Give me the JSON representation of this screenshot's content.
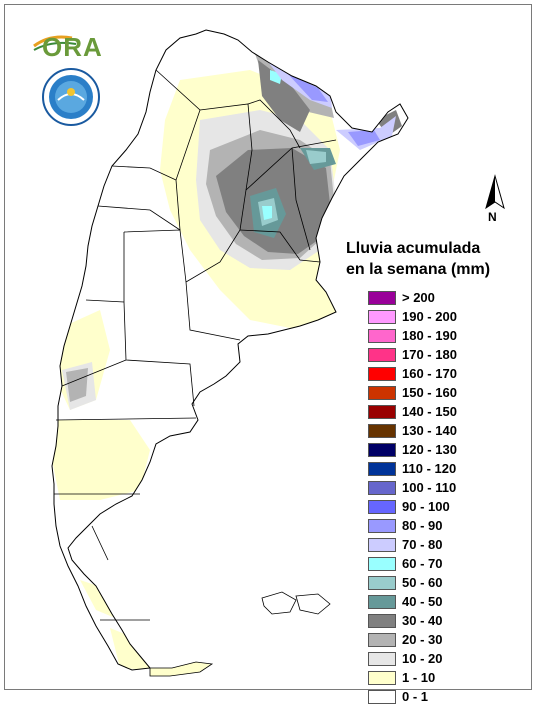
{
  "legend": {
    "title_line1": "Lluvia acumulada",
    "title_line2": "en la semana (mm)",
    "classes": [
      {
        "label": "> 200",
        "color": "#990099"
      },
      {
        "label": "190 - 200",
        "color": "#ff99ff"
      },
      {
        "label": "180 - 190",
        "color": "#ff66cc"
      },
      {
        "label": "170 - 180",
        "color": "#ff3388"
      },
      {
        "label": "160 - 170",
        "color": "#ff0000"
      },
      {
        "label": "150 - 160",
        "color": "#cc3300"
      },
      {
        "label": "140 - 150",
        "color": "#990000"
      },
      {
        "label": "130 - 140",
        "color": "#663300"
      },
      {
        "label": "120 - 130",
        "color": "#000066"
      },
      {
        "label": "110 - 120",
        "color": "#003399"
      },
      {
        "label": "100 - 110",
        "color": "#6666cc"
      },
      {
        "label": "90 - 100",
        "color": "#6666ff"
      },
      {
        "label": "80 - 90",
        "color": "#9999ff"
      },
      {
        "label": "70 - 80",
        "color": "#ccccff"
      },
      {
        "label": "60 - 70",
        "color": "#99ffff"
      },
      {
        "label": "50 - 60",
        "color": "#99cccc"
      },
      {
        "label": "40 - 50",
        "color": "#669999"
      },
      {
        "label": "30 - 40",
        "color": "#808080"
      },
      {
        "label": "20 - 30",
        "color": "#b3b3b3"
      },
      {
        "label": "10 - 20",
        "color": "#e6e6e6"
      },
      {
        "label": "1 - 10",
        "color": "#ffffcc"
      },
      {
        "label": "0 - 1",
        "color": "#ffffff"
      }
    ]
  },
  "north_arrow": {
    "label": "N"
  },
  "logos": {
    "ora": "ORA",
    "smn": "smn-emblem-icon"
  }
}
